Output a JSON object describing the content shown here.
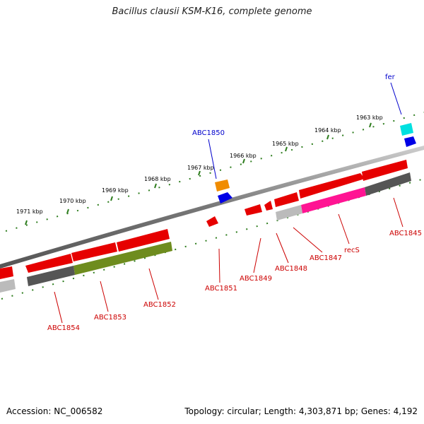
{
  "title": "Bacillus clausii KSM-K16, complete genome",
  "footer": {
    "accession": "Accession: NC_006582",
    "summary": "Topology: circular; Length: 4,303,871 bp; Genes: 4,192"
  },
  "colors": {
    "red": "#e60000",
    "green_tick": "#2e7d1e",
    "backbone": "#888888",
    "orange": "#f08c00",
    "blue": "#0000e6",
    "cyan": "#00e0e0",
    "olive": "#6e8c1e",
    "magenta": "#ff1493",
    "dark_gray": "#555555",
    "light_gray": "#bbbbbb",
    "label_red": "#cc0000",
    "label_blue": "#0000cc"
  },
  "kbp_labels": [
    "1963 kbp",
    "1964 kbp",
    "1965 kbp",
    "1966 kbp",
    "1967 kbp",
    "1968 kbp",
    "1969 kbp",
    "1970 kbp",
    "1971 kbp"
  ],
  "gene_labels": {
    "fer": "fer",
    "ABC1850": "ABC1850",
    "ABC1845": "ABC1845",
    "recS": "recS",
    "ABC1847": "ABC1847",
    "ABC1848": "ABC1848",
    "ABC1849": "ABC1849",
    "ABC1851": "ABC1851",
    "ABC1852": "ABC1852",
    "ABC1853": "ABC1853",
    "ABC1854": "ABC1854"
  }
}
